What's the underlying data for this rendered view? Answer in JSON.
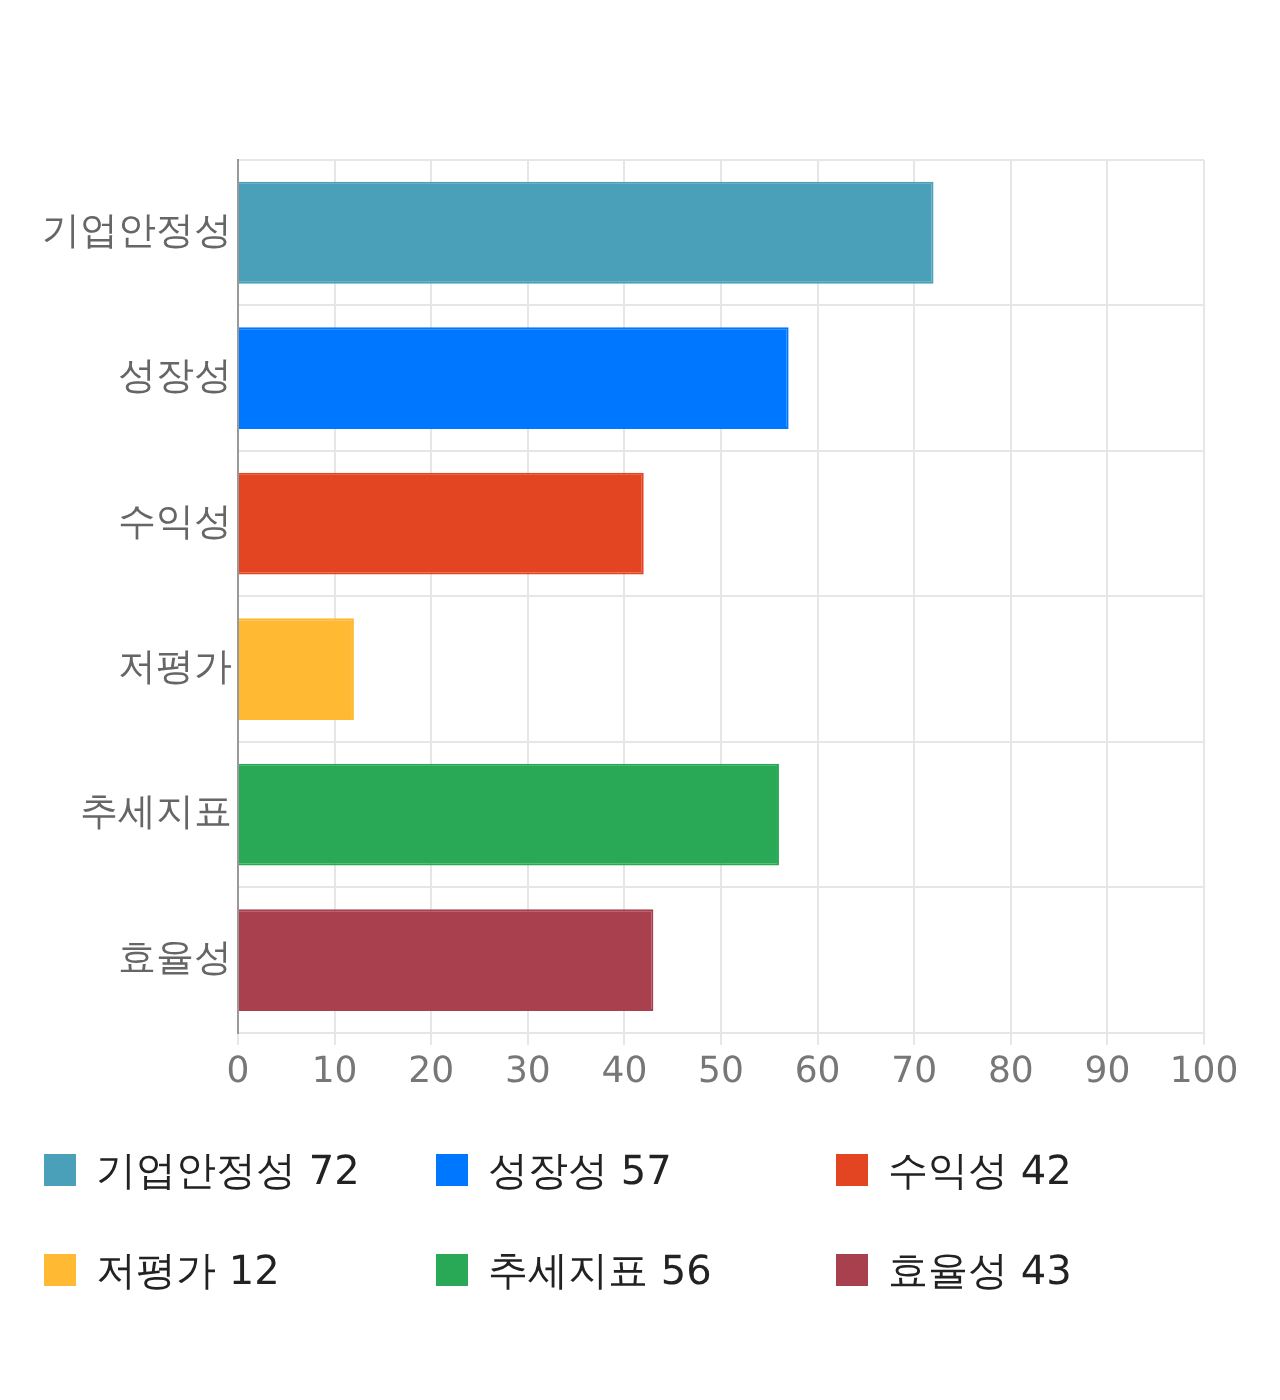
{
  "chart_data": {
    "type": "bar",
    "orientation": "horizontal",
    "categories": [
      "기업안정성",
      "성장성",
      "수익성",
      "저평가",
      "추세지표",
      "효율성"
    ],
    "values": [
      72,
      57,
      42,
      12,
      56,
      43
    ],
    "colors": [
      "#4aa0b9",
      "#0077ff",
      "#e34522",
      "#ffb933",
      "#29a855",
      "#a8404e"
    ],
    "xlim": [
      0,
      100
    ],
    "xticks": [
      0,
      10,
      20,
      30,
      40,
      50,
      60,
      70,
      80,
      90,
      100
    ],
    "grid": true,
    "annotations": [
      "기업안정성 72",
      "성장성 57",
      "수익성 42",
      "저평가 12",
      "추세지표 56",
      "효율성 43"
    ]
  }
}
